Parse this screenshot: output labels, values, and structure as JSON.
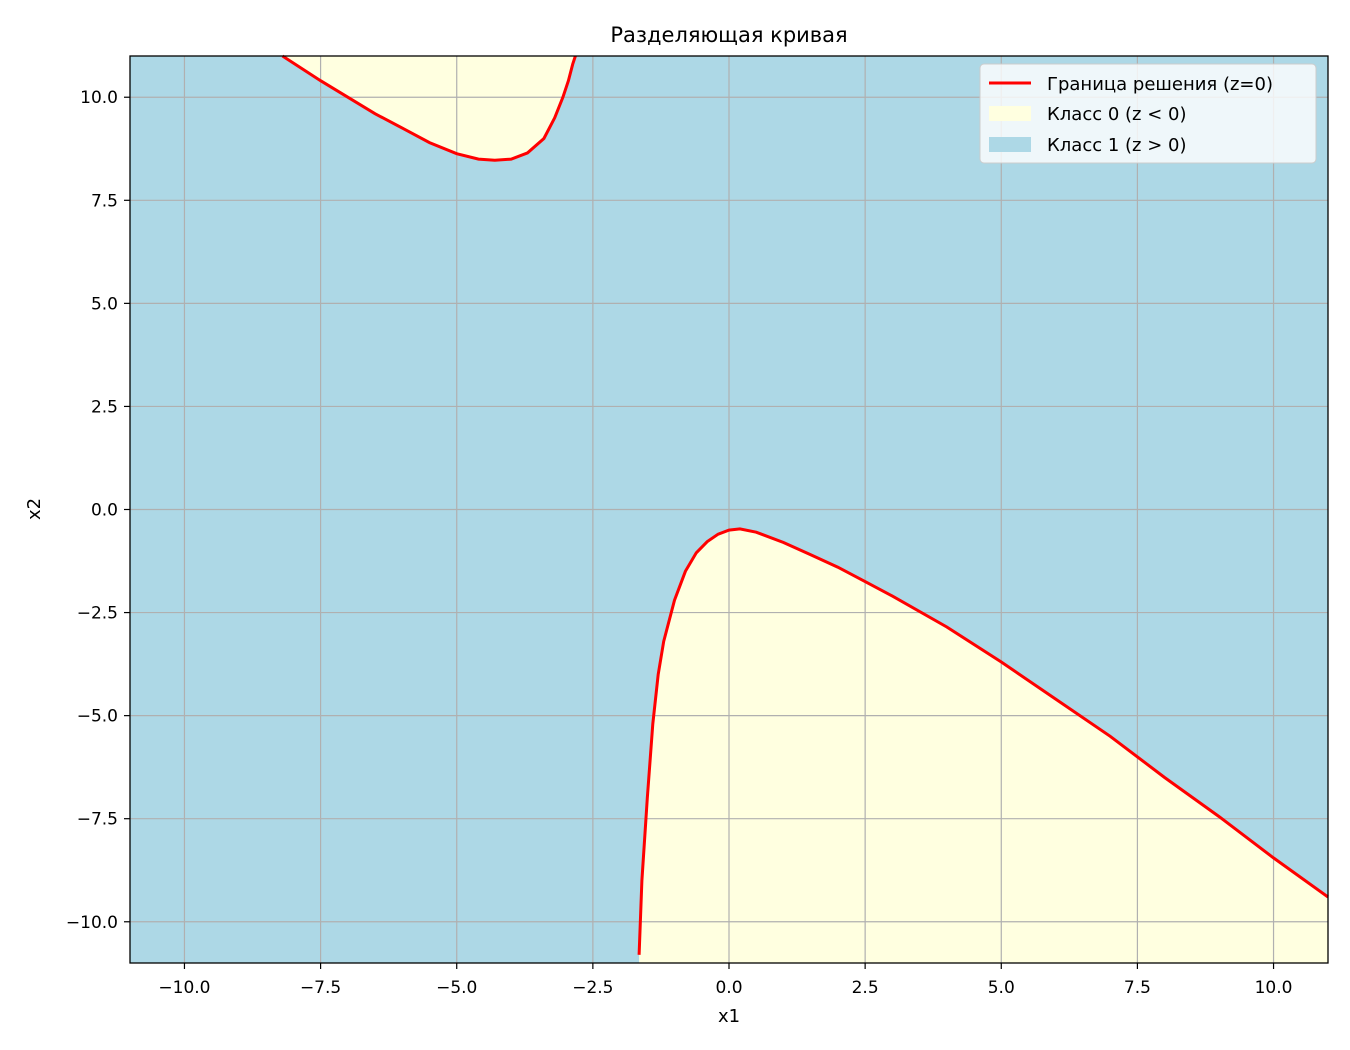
{
  "chart_data": {
    "type": "contour",
    "title": "Разделяющая кривая",
    "xlabel": "x1",
    "ylabel": "x2",
    "xlim": [
      -11,
      11
    ],
    "ylim": [
      -11,
      11
    ],
    "grid": true,
    "legend_position": "top-right",
    "xticks": [
      -10.0,
      -7.5,
      -5.0,
      -2.5,
      0.0,
      2.5,
      5.0,
      7.5,
      10.0
    ],
    "yticks": [
      -10.0,
      -7.5,
      -5.0,
      -2.5,
      0.0,
      2.5,
      5.0,
      7.5,
      10.0
    ],
    "xtick_labels": [
      "−10.0",
      "−7.5",
      "−5.0",
      "−2.5",
      "0.0",
      "2.5",
      "5.0",
      "7.5",
      "10.0"
    ],
    "ytick_labels": [
      "−10.0",
      "−7.5",
      "−5.0",
      "−2.5",
      "0.0",
      "2.5",
      "5.0",
      "7.5",
      "10.0"
    ],
    "colors": {
      "boundary": "#ff0000",
      "class0": "#ffffe0",
      "class1": "#add8e6",
      "grid": "#b0b0b0"
    },
    "legend": [
      {
        "label": "Граница решения (z=0)",
        "kind": "line",
        "color": "#ff0000"
      },
      {
        "label": "Класс 0 (z < 0)",
        "kind": "patch",
        "color": "#ffffe0"
      },
      {
        "label": "Класс 1 (z > 0)",
        "kind": "patch",
        "color": "#add8e6"
      }
    ],
    "series": [
      {
        "role": "boundary-branch-upper",
        "x": [
          -8.2,
          -7.5,
          -7.0,
          -6.5,
          -6.0,
          -5.5,
          -5.0,
          -4.6,
          -4.3,
          -4.0,
          -3.7,
          -3.4,
          -3.2,
          -3.05,
          -2.95,
          -2.87,
          -2.82
        ],
        "y": [
          11.0,
          10.4,
          10.0,
          9.6,
          9.25,
          8.9,
          8.63,
          8.5,
          8.47,
          8.5,
          8.65,
          9.0,
          9.5,
          10.0,
          10.4,
          10.8,
          11.0
        ]
      },
      {
        "role": "boundary-branch-lower",
        "x": [
          -1.65,
          -1.6,
          -1.5,
          -1.4,
          -1.3,
          -1.2,
          -1.0,
          -0.8,
          -0.6,
          -0.4,
          -0.2,
          0.0,
          0.2,
          0.5,
          1.0,
          1.5,
          2.0,
          2.5,
          3.0,
          4.0,
          5.0,
          6.0,
          7.0,
          8.0,
          9.0,
          10.0,
          11.0
        ],
        "y": [
          -10.8,
          -9.0,
          -7.0,
          -5.2,
          -4.0,
          -3.2,
          -2.2,
          -1.5,
          -1.05,
          -0.78,
          -0.6,
          -0.5,
          -0.47,
          -0.55,
          -0.8,
          -1.1,
          -1.4,
          -1.75,
          -2.1,
          -2.85,
          -3.7,
          -4.6,
          -5.5,
          -6.5,
          -7.45,
          -8.45,
          -9.4
        ]
      }
    ]
  }
}
